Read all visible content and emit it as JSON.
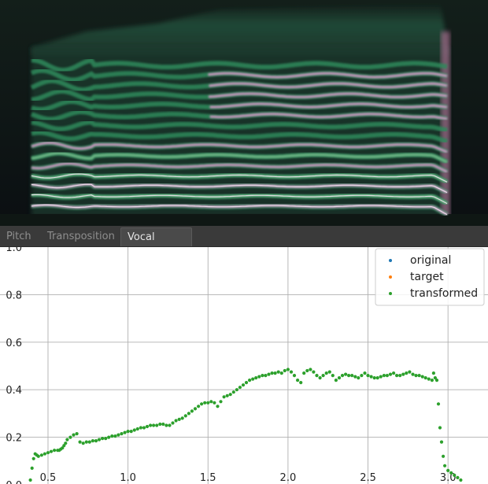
{
  "tabs": [
    {
      "label": "Pitch",
      "active": false
    },
    {
      "label": "Transposition",
      "active": false
    },
    {
      "label": "Vocal Effort",
      "active": true
    }
  ],
  "colors": {
    "original": "#1f77b4",
    "target": "#ff7f0e",
    "transformed": "#2ca02c",
    "grid": "#b0b0b0",
    "tab_bar": "#3a3a3a"
  },
  "spectrogram": {
    "colormap": "cubehelix-like dark green / pink",
    "harmonic_count": 15
  },
  "chart_data": {
    "type": "scatter",
    "xlim": [
      0.2,
      3.25
    ],
    "ylim": [
      0.0,
      1.0
    ],
    "x_ticks": [
      0.5,
      1.0,
      1.5,
      2.0,
      2.5,
      3.0
    ],
    "y_ticks": [
      0.0,
      0.2,
      0.4,
      0.6,
      0.8,
      1.0
    ],
    "x_tick_labels": [
      "0.5",
      "1.0",
      "1.5",
      "2.0",
      "2.5",
      "3.0"
    ],
    "y_tick_labels": [
      "0.0",
      "0.2",
      "0.4",
      "0.6",
      "0.8",
      "1.0"
    ],
    "grid": true,
    "legend_position": "top-right",
    "series": [
      {
        "name": "original",
        "x": [],
        "y": []
      },
      {
        "name": "target",
        "x": [],
        "y": []
      },
      {
        "name": "transformed",
        "x": [
          0.39,
          0.4,
          0.41,
          0.42,
          0.43,
          0.44,
          0.46,
          0.48,
          0.5,
          0.52,
          0.54,
          0.56,
          0.57,
          0.58,
          0.59,
          0.6,
          0.61,
          0.62,
          0.64,
          0.66,
          0.68,
          0.7,
          0.72,
          0.74,
          0.76,
          0.78,
          0.8,
          0.82,
          0.84,
          0.86,
          0.88,
          0.9,
          0.92,
          0.94,
          0.96,
          0.98,
          1.0,
          1.02,
          1.04,
          1.06,
          1.08,
          1.1,
          1.12,
          1.14,
          1.16,
          1.18,
          1.2,
          1.22,
          1.24,
          1.26,
          1.28,
          1.3,
          1.32,
          1.34,
          1.36,
          1.38,
          1.4,
          1.42,
          1.44,
          1.46,
          1.48,
          1.5,
          1.52,
          1.54,
          1.56,
          1.58,
          1.6,
          1.62,
          1.64,
          1.66,
          1.68,
          1.7,
          1.72,
          1.74,
          1.76,
          1.78,
          1.8,
          1.82,
          1.84,
          1.86,
          1.88,
          1.9,
          1.92,
          1.94,
          1.96,
          1.98,
          2.0,
          2.02,
          2.04,
          2.06,
          2.08,
          2.1,
          2.12,
          2.14,
          2.16,
          2.18,
          2.2,
          2.22,
          2.24,
          2.26,
          2.28,
          2.3,
          2.32,
          2.34,
          2.36,
          2.38,
          2.4,
          2.42,
          2.44,
          2.46,
          2.48,
          2.5,
          2.52,
          2.54,
          2.56,
          2.58,
          2.6,
          2.62,
          2.64,
          2.66,
          2.68,
          2.7,
          2.72,
          2.74,
          2.76,
          2.78,
          2.8,
          2.82,
          2.84,
          2.86,
          2.88,
          2.9,
          2.91,
          2.92,
          2.93,
          2.94,
          2.95,
          2.96,
          2.97,
          2.98,
          3.0,
          3.02,
          3.04,
          3.06,
          3.08
        ],
        "y": [
          0.02,
          0.07,
          0.11,
          0.13,
          0.125,
          0.12,
          0.125,
          0.13,
          0.135,
          0.14,
          0.145,
          0.145,
          0.145,
          0.15,
          0.155,
          0.165,
          0.175,
          0.19,
          0.2,
          0.21,
          0.215,
          0.18,
          0.175,
          0.18,
          0.18,
          0.185,
          0.185,
          0.19,
          0.195,
          0.195,
          0.2,
          0.205,
          0.205,
          0.21,
          0.215,
          0.22,
          0.225,
          0.225,
          0.23,
          0.235,
          0.24,
          0.24,
          0.245,
          0.25,
          0.25,
          0.25,
          0.255,
          0.255,
          0.25,
          0.25,
          0.26,
          0.27,
          0.275,
          0.28,
          0.29,
          0.3,
          0.31,
          0.32,
          0.33,
          0.34,
          0.345,
          0.345,
          0.35,
          0.345,
          0.33,
          0.35,
          0.37,
          0.375,
          0.38,
          0.39,
          0.4,
          0.41,
          0.42,
          0.43,
          0.44,
          0.445,
          0.45,
          0.455,
          0.46,
          0.46,
          0.465,
          0.47,
          0.47,
          0.475,
          0.47,
          0.48,
          0.485,
          0.475,
          0.46,
          0.44,
          0.43,
          0.47,
          0.48,
          0.485,
          0.475,
          0.46,
          0.45,
          0.46,
          0.47,
          0.475,
          0.46,
          0.44,
          0.45,
          0.46,
          0.465,
          0.46,
          0.46,
          0.455,
          0.45,
          0.46,
          0.47,
          0.46,
          0.455,
          0.45,
          0.45,
          0.455,
          0.46,
          0.46,
          0.465,
          0.47,
          0.46,
          0.46,
          0.465,
          0.47,
          0.475,
          0.465,
          0.46,
          0.46,
          0.455,
          0.45,
          0.445,
          0.44,
          0.47,
          0.45,
          0.44,
          0.34,
          0.24,
          0.18,
          0.12,
          0.08,
          0.06,
          0.05,
          0.04,
          0.03,
          0.02
        ]
      }
    ]
  }
}
